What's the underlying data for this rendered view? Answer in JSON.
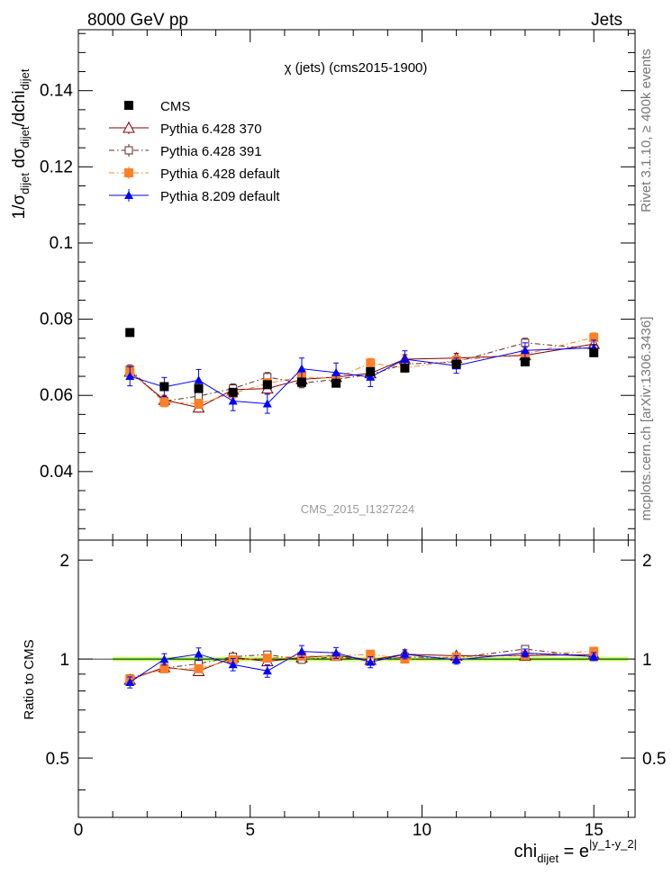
{
  "header": {
    "left": "8000 GeV pp",
    "right": "Jets",
    "title": "χ (jets) (cms2015-1900)",
    "watermark": "CMS_2015_I1327224",
    "side_top": "Rivet 3.1.10, ≥ 400k events",
    "side_bottom": "mcplots.cern.ch [arXiv:1306.3436]"
  },
  "labels": {
    "ylabel_main": "1/σdijet dσdijet/dchidijet",
    "ylabel_ratio": "Ratio to CMS",
    "xlabel": "chidijet = e|y_1-y_2|"
  },
  "chart_data": {
    "type": "scatter",
    "x": [
      1.5,
      2.5,
      3.5,
      4.5,
      5.5,
      6.5,
      7.5,
      8.5,
      9.5,
      11,
      13,
      15
    ],
    "xlim": [
      0,
      16.2
    ],
    "ylim_main": [
      0.022,
      0.156
    ],
    "ylim_ratio": [
      0.33,
      2.3
    ],
    "xticks": [
      0,
      5,
      10,
      15
    ],
    "yticks_main": [
      0.04,
      0.06,
      0.08,
      0.1,
      0.12,
      0.14
    ],
    "yticks_ratio": [
      0.5,
      1,
      2
    ],
    "legend_position": "top-left",
    "reference_band": {
      "low": 0.985,
      "high": 1.015,
      "color": "#ccff66",
      "line": "#00cc00"
    },
    "series": [
      {
        "name": "CMS",
        "color": "#000000",
        "marker": "square-filled",
        "line": "none",
        "values": [
          0.0765,
          0.0623,
          0.0618,
          0.0608,
          0.0628,
          0.0635,
          0.0632,
          0.0662,
          0.0672,
          0.0682,
          0.0688,
          0.0712
        ],
        "errors": [
          0.0005,
          0.0004,
          0.0004,
          0.0004,
          0.0004,
          0.0004,
          0.0004,
          0.0004,
          0.0004,
          0.0004,
          0.0004,
          0.0004
        ]
      },
      {
        "name": "Pythia 6.428 370",
        "color": "#800000",
        "marker": "triangle-open",
        "line": "solid",
        "values": [
          0.0662,
          0.0588,
          0.0568,
          0.0615,
          0.0618,
          0.0642,
          0.0648,
          0.0658,
          0.0695,
          0.0698,
          0.0705,
          0.0735
        ],
        "errors": [
          0.0012,
          0.0012,
          0.0012,
          0.0012,
          0.0012,
          0.0012,
          0.0012,
          0.0012,
          0.0012,
          0.0012,
          0.0012,
          0.0012
        ]
      },
      {
        "name": "Pythia 6.428 391",
        "color": "#5c2a2a",
        "marker": "square-open",
        "line": "dashdot",
        "values": [
          0.0668,
          0.0585,
          0.0598,
          0.0618,
          0.0648,
          0.0632,
          0.0642,
          0.0655,
          0.0682,
          0.0688,
          0.0738,
          0.0722
        ],
        "errors": [
          0.0012,
          0.0012,
          0.0012,
          0.0012,
          0.0012,
          0.0012,
          0.0012,
          0.0012,
          0.0012,
          0.0012,
          0.0012,
          0.0012
        ]
      },
      {
        "name": "Pythia 6.428 default",
        "color": "#ff7f27",
        "marker": "square-filled",
        "line": "dashdot",
        "values": [
          0.0665,
          0.0582,
          0.0578,
          0.0605,
          0.0632,
          0.0648,
          0.0645,
          0.0685,
          0.0672,
          0.0692,
          0.0708,
          0.0752
        ],
        "errors": [
          0.0012,
          0.0012,
          0.0012,
          0.0012,
          0.0012,
          0.0012,
          0.0012,
          0.0012,
          0.0012,
          0.0012,
          0.0012,
          0.0012
        ]
      },
      {
        "name": "Pythia 8.209 default",
        "color": "#0000ff",
        "marker": "triangle-filled",
        "line": "solid",
        "values": [
          0.065,
          0.0622,
          0.064,
          0.0585,
          0.0578,
          0.067,
          0.066,
          0.0648,
          0.0695,
          0.0678,
          0.0718,
          0.0725
        ],
        "errors": [
          0.0025,
          0.0025,
          0.0028,
          0.0025,
          0.0025,
          0.0028,
          0.0025,
          0.0025,
          0.0022,
          0.002,
          0.002,
          0.002
        ]
      }
    ]
  }
}
